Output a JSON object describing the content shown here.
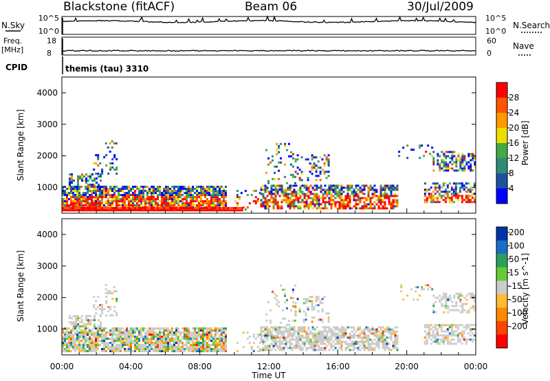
{
  "header": {
    "radar": "Blackstone (fitACF)",
    "beam": "Beam 06",
    "date": "30/Jul/2009"
  },
  "cpid_label": "CPID",
  "cpid_text": "themis (tau) 3310",
  "chart_data": [
    {
      "type": "line",
      "name": "noise-panel",
      "left_label": "N.Sky",
      "right_label": "N.Search",
      "left_ticks": [
        "10^5",
        "10^0"
      ],
      "right_ticks": [
        "10^5",
        "10^0"
      ],
      "scale": "log",
      "ylim_exp": [
        0,
        5
      ]
    },
    {
      "type": "line",
      "name": "freq-nave-panel",
      "left_label_top": "Freq.",
      "left_label_bottom": "[MHz]",
      "right_label": "Nave",
      "left_ticks": [
        "18",
        "8"
      ],
      "left_range": [
        8,
        18
      ],
      "right_ticks": [
        "60",
        "0"
      ],
      "right_range": [
        0,
        60
      ]
    },
    {
      "type": "heatmap",
      "name": "power",
      "ylabel": "Slant Range [km]",
      "ylim": [
        180,
        4500
      ],
      "yticks": [
        "1000",
        "2000",
        "3000",
        "4000"
      ],
      "xlim_hours": [
        0,
        24
      ],
      "colorbar_label": "Power [dB]",
      "colorbar_ticks": [
        "4",
        "8",
        "12",
        "16",
        "20",
        "24",
        "28"
      ],
      "colors": [
        "#0000ff",
        "#1e50a0",
        "#2f8a78",
        "#44aa44",
        "#eedd00",
        "#ff9900",
        "#ff5500",
        "#ff0000"
      ]
    },
    {
      "type": "heatmap",
      "name": "velocity",
      "ylabel": "Slant Range [km]",
      "ylim": [
        180,
        4500
      ],
      "yticks": [
        "1000",
        "2000",
        "3000",
        "4000"
      ],
      "xlim_hours": [
        0,
        24
      ],
      "xticks": [
        "00:00",
        "04:00",
        "08:00",
        "12:00",
        "16:00",
        "20:00",
        "00:00"
      ],
      "xlabel": "Time UT",
      "colorbar_label": "Velocity [m s^-1]",
      "colorbar_ticks": [
        "200",
        "100",
        "50",
        "15",
        "-15",
        "-50",
        "-100",
        "-200"
      ],
      "colors": [
        "#0033aa",
        "#1a6ec8",
        "#2ca05a",
        "#66cc33",
        "#cccccc",
        "#ffbb33",
        "#ff8800",
        "#ff4400",
        "#ff0000"
      ]
    }
  ]
}
